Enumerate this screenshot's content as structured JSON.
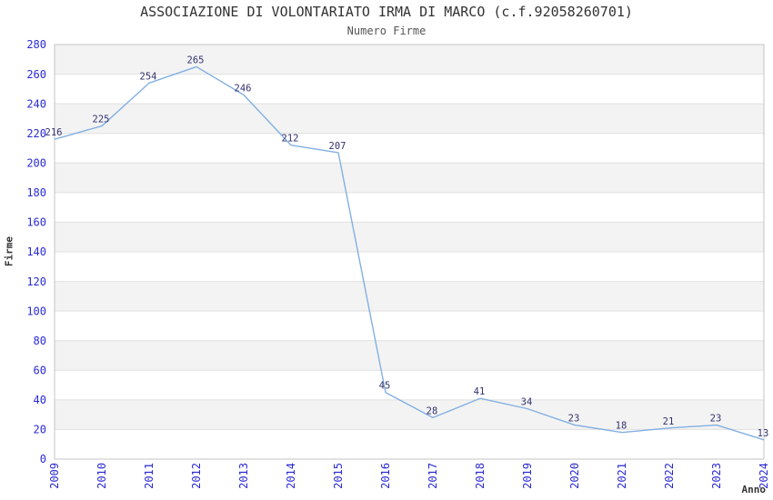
{
  "chart_data": {
    "type": "line",
    "title": "ASSOCIAZIONE DI VOLONTARIATO IRMA DI MARCO (c.f.92058260701)",
    "subtitle": "Numero Firme",
    "xlabel": "Anno",
    "ylabel": "Firme",
    "categories": [
      "2009",
      "2010",
      "2011",
      "2012",
      "2013",
      "2014",
      "2015",
      "2016",
      "2017",
      "2018",
      "2019",
      "2020",
      "2021",
      "2022",
      "2023",
      "2024"
    ],
    "values": [
      216,
      225,
      254,
      265,
      246,
      212,
      207,
      45,
      28,
      41,
      34,
      23,
      18,
      21,
      23,
      13
    ],
    "ylim": [
      0,
      280
    ],
    "yticks": [
      0,
      20,
      40,
      60,
      80,
      100,
      120,
      140,
      160,
      180,
      200,
      220,
      240,
      260,
      280
    ],
    "grid": true,
    "legend": "none",
    "plot_bands_alternating": true,
    "x_tick_rotation_deg": 90,
    "data_labels_shown": true,
    "colors": {
      "line": "#82b0e2",
      "tick_label": "#2a2ad5",
      "data_label": "#333370",
      "band": "#f3f3f3",
      "gridline": "#e0e0e0",
      "plot_border": "#c6c6c6",
      "title": "#333333",
      "subtitle": "#555555",
      "axis_title": "#333333",
      "background": "#ffffff"
    }
  }
}
